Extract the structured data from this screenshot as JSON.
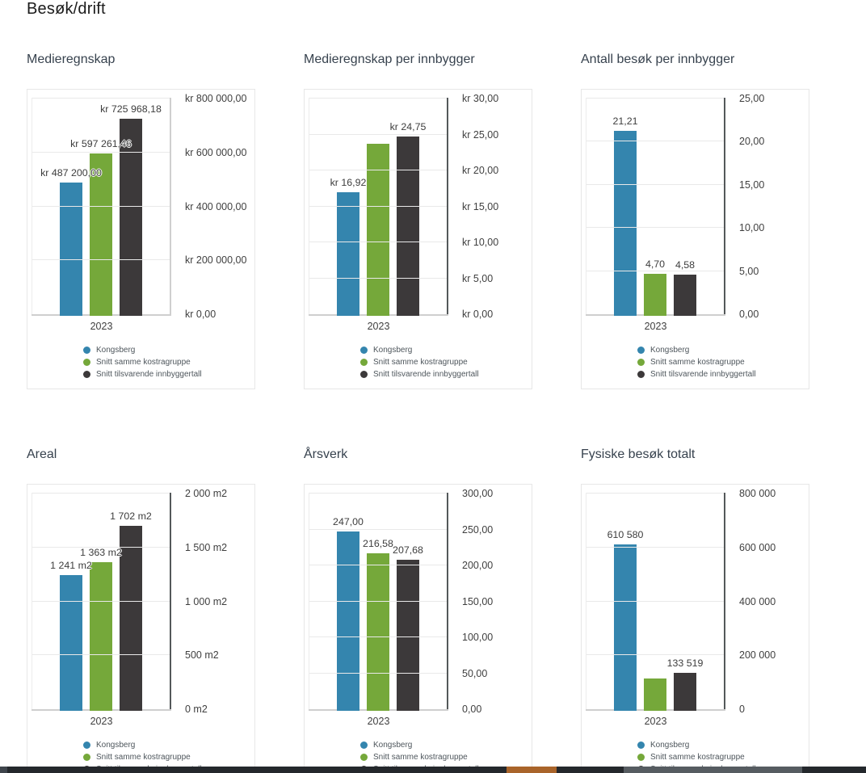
{
  "page": {
    "title": "Besøk/drift"
  },
  "series_colors": {
    "Kongsberg": "#3485ae",
    "Snitt samme kostragruppe": "#75a83a",
    "Snitt tilsvarende innbyggertall": "#3c393a"
  },
  "chart_data": [
    {
      "type": "bar",
      "title": "Medieregnskap",
      "categories": [
        "2023"
      ],
      "series": [
        {
          "name": "Kongsberg",
          "values": [
            487200
          ],
          "data_labels": [
            "kr 487 200,00"
          ]
        },
        {
          "name": "Snitt samme kostragruppe",
          "values": [
            597261.46
          ],
          "data_labels": [
            "kr 597 261,46"
          ]
        },
        {
          "name": "Snitt tilsvarende innbyggertall",
          "values": [
            725968.18
          ],
          "data_labels": [
            "kr 725 968,18"
          ]
        }
      ],
      "ylim": [
        0,
        800000
      ],
      "yticks": [
        {
          "value": 800000,
          "label": "kr 800 000,00"
        },
        {
          "value": 600000,
          "label": "kr 600 000,00"
        },
        {
          "value": 400000,
          "label": "kr 400 000,00"
        },
        {
          "value": 200000,
          "label": "kr 200 000,00"
        },
        {
          "value": 0,
          "label": "kr 0,00"
        }
      ],
      "yaxis_position": "right",
      "grid": true,
      "legend_position": "bottom",
      "axis_color": "#cfcfcf"
    },
    {
      "type": "bar",
      "title": "Medieregnskap per innbygger",
      "categories": [
        "2023"
      ],
      "series": [
        {
          "name": "Kongsberg",
          "values": [
            16.92
          ],
          "data_labels": [
            "kr 16,92"
          ]
        },
        {
          "name": "Snitt samme kostragruppe",
          "values": [
            23.7
          ],
          "data_labels": [
            null
          ]
        },
        {
          "name": "Snitt tilsvarende innbyggertall",
          "values": [
            24.75
          ],
          "data_labels": [
            "kr 24,75"
          ]
        }
      ],
      "ylim": [
        0,
        30
      ],
      "yticks": [
        {
          "value": 30,
          "label": "kr 30,00"
        },
        {
          "value": 25,
          "label": "kr 25,00"
        },
        {
          "value": 20,
          "label": "kr 20,00"
        },
        {
          "value": 15,
          "label": "kr 15,00"
        },
        {
          "value": 10,
          "label": "kr 10,00"
        },
        {
          "value": 5,
          "label": "kr 5,00"
        },
        {
          "value": 0,
          "label": "kr 0,00"
        }
      ],
      "yaxis_position": "right",
      "grid": true,
      "legend_position": "bottom",
      "axis_color": "#54585a"
    },
    {
      "type": "bar",
      "title": "Antall besøk per innbygger",
      "categories": [
        "2023"
      ],
      "series": [
        {
          "name": "Kongsberg",
          "values": [
            21.21
          ],
          "data_labels": [
            "21,21"
          ]
        },
        {
          "name": "Snitt samme kostragruppe",
          "values": [
            4.7
          ],
          "data_labels": [
            "4,70"
          ]
        },
        {
          "name": "Snitt tilsvarende innbyggertall",
          "values": [
            4.58
          ],
          "data_labels": [
            "4,58"
          ]
        }
      ],
      "ylim": [
        0,
        25
      ],
      "yticks": [
        {
          "value": 25,
          "label": "25,00"
        },
        {
          "value": 20,
          "label": "20,00"
        },
        {
          "value": 15,
          "label": "15,00"
        },
        {
          "value": 10,
          "label": "10,00"
        },
        {
          "value": 5,
          "label": "5,00"
        },
        {
          "value": 0,
          "label": "0,00"
        }
      ],
      "yaxis_position": "right",
      "grid": true,
      "legend_position": "bottom",
      "axis_color": "#54585a"
    },
    {
      "type": "bar",
      "title": "Areal",
      "categories": [
        "2023"
      ],
      "series": [
        {
          "name": "Kongsberg",
          "values": [
            1241
          ],
          "data_labels": [
            "1 241 m2"
          ]
        },
        {
          "name": "Snitt samme kostragruppe",
          "values": [
            1363
          ],
          "data_labels": [
            "1 363 m2"
          ]
        },
        {
          "name": "Snitt tilsvarende innbyggertall",
          "values": [
            1702
          ],
          "data_labels": [
            "1 702 m2"
          ]
        }
      ],
      "ylim": [
        0,
        2000
      ],
      "yticks": [
        {
          "value": 2000,
          "label": "2 000 m2"
        },
        {
          "value": 1500,
          "label": "1 500 m2"
        },
        {
          "value": 1000,
          "label": "1 000 m2"
        },
        {
          "value": 500,
          "label": "500 m2"
        },
        {
          "value": 0,
          "label": "0 m2"
        }
      ],
      "yaxis_position": "right",
      "grid": true,
      "legend_position": "bottom",
      "axis_color": "#54585a"
    },
    {
      "type": "bar",
      "title": "Årsverk",
      "categories": [
        "2023"
      ],
      "series": [
        {
          "name": "Kongsberg",
          "values": [
            247.0
          ],
          "data_labels": [
            "247,00"
          ]
        },
        {
          "name": "Snitt samme kostragruppe",
          "values": [
            216.58
          ],
          "data_labels": [
            "216,58"
          ]
        },
        {
          "name": "Snitt tilsvarende innbyggertall",
          "values": [
            207.68
          ],
          "data_labels": [
            "207,68"
          ]
        }
      ],
      "ylim": [
        0,
        300
      ],
      "yticks": [
        {
          "value": 300,
          "label": "300,00"
        },
        {
          "value": 250,
          "label": "250,00"
        },
        {
          "value": 200,
          "label": "200,00"
        },
        {
          "value": 150,
          "label": "150,00"
        },
        {
          "value": 100,
          "label": "100,00"
        },
        {
          "value": 50,
          "label": "50,00"
        },
        {
          "value": 0,
          "label": "0,00"
        }
      ],
      "yaxis_position": "right",
      "grid": true,
      "legend_position": "bottom",
      "axis_color": "#54585a"
    },
    {
      "type": "bar",
      "title": "Fysiske besøk totalt",
      "categories": [
        "2023"
      ],
      "series": [
        {
          "name": "Kongsberg",
          "values": [
            610580
          ],
          "data_labels": [
            "610 580"
          ]
        },
        {
          "name": "Snitt samme kostragruppe",
          "values": [
            115000
          ],
          "data_labels": [
            null
          ]
        },
        {
          "name": "Snitt tilsvarende innbyggertall",
          "values": [
            133519
          ],
          "data_labels": [
            "133 519"
          ]
        }
      ],
      "ylim": [
        0,
        800000
      ],
      "yticks": [
        {
          "value": 800000,
          "label": "800 000"
        },
        {
          "value": 600000,
          "label": "600 000"
        },
        {
          "value": 400000,
          "label": "400 000"
        },
        {
          "value": 200000,
          "label": "200 000"
        },
        {
          "value": 0,
          "label": "0"
        }
      ],
      "yaxis_position": "right",
      "grid": true,
      "legend_position": "bottom",
      "axis_color": "#54585a"
    }
  ],
  "footer": {
    "colors": {
      "base": "#24282c",
      "left": "#3f454c",
      "accent": "#a9642a",
      "thumb": "#565c61"
    }
  }
}
